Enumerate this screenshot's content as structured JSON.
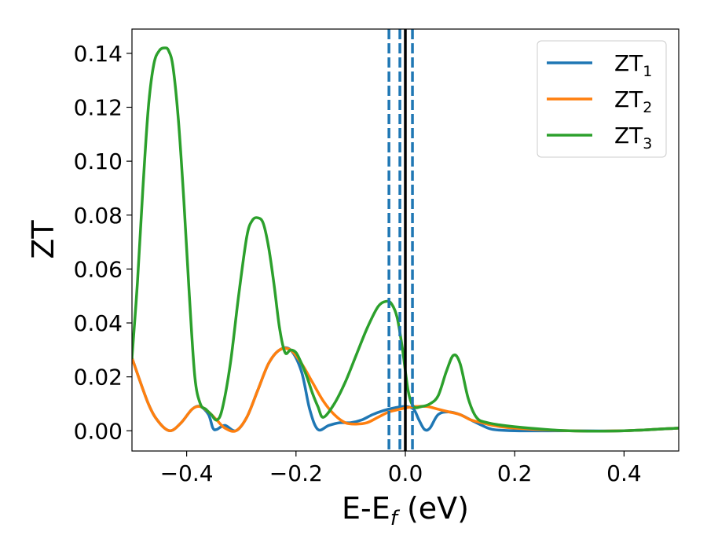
{
  "chart_data": {
    "type": "line",
    "xlabel": "E-E",
    "xlabel_sub": "f",
    "xlabel_unit": " (eV)",
    "ylabel": "ZT",
    "xlim": [
      -0.5,
      0.5
    ],
    "ylim": [
      -0.0075,
      0.149
    ],
    "xticks": [
      -0.4,
      -0.2,
      0.0,
      0.2,
      0.4
    ],
    "xtick_labels": [
      "−0.4",
      "−0.2",
      "0.0",
      "0.2",
      "0.4"
    ],
    "yticks": [
      0.0,
      0.02,
      0.04,
      0.06,
      0.08,
      0.1,
      0.12,
      0.14
    ],
    "ytick_labels": [
      "0.00",
      "0.02",
      "0.04",
      "0.06",
      "0.08",
      "0.10",
      "0.12",
      "0.14"
    ],
    "legend_position": "top-right",
    "grid": false,
    "vlines": [
      {
        "x": -0.03,
        "style": "dashed",
        "color": "#1f77b4"
      },
      {
        "x": -0.01,
        "style": "dashed",
        "color": "#1f77b4"
      },
      {
        "x": 0.0,
        "style": "solid",
        "color": "#000000"
      },
      {
        "x": 0.013,
        "style": "dashed",
        "color": "#1f77b4"
      }
    ],
    "series": [
      {
        "name": "ZT",
        "name_sub": "1",
        "color": "#1f77b4",
        "x": [
          -0.5,
          -0.47,
          -0.45,
          -0.43,
          -0.41,
          -0.39,
          -0.375,
          -0.36,
          -0.352,
          -0.345,
          -0.33,
          -0.31,
          -0.29,
          -0.27,
          -0.25,
          -0.23,
          -0.21,
          -0.19,
          -0.175,
          -0.16,
          -0.14,
          -0.12,
          -0.1,
          -0.08,
          -0.06,
          -0.04,
          -0.02,
          0.0,
          0.015,
          0.025,
          0.035,
          0.045,
          0.06,
          0.08,
          0.1,
          0.12,
          0.14,
          0.16,
          0.2,
          0.3,
          0.4,
          0.5
        ],
        "y": [
          0.027,
          0.01,
          0.003,
          0.0,
          0.003,
          0.008,
          0.009,
          0.006,
          0.001,
          0.0005,
          0.002,
          0.0,
          0.005,
          0.015,
          0.025,
          0.03,
          0.03,
          0.022,
          0.008,
          0.0005,
          0.002,
          0.003,
          0.003,
          0.004,
          0.006,
          0.0075,
          0.0085,
          0.009,
          0.008,
          0.004,
          0.0005,
          0.001,
          0.006,
          0.007,
          0.006,
          0.004,
          0.002,
          0.0005,
          0.0,
          0.0,
          0.0,
          0.001
        ]
      },
      {
        "name": "ZT",
        "name_sub": "2",
        "color": "#ff7f0e",
        "x": [
          -0.5,
          -0.47,
          -0.45,
          -0.43,
          -0.41,
          -0.39,
          -0.375,
          -0.36,
          -0.345,
          -0.33,
          -0.31,
          -0.29,
          -0.27,
          -0.25,
          -0.23,
          -0.21,
          -0.19,
          -0.17,
          -0.15,
          -0.13,
          -0.11,
          -0.09,
          -0.07,
          -0.05,
          -0.03,
          -0.01,
          0.0,
          0.02,
          0.04,
          0.06,
          0.08,
          0.1,
          0.12,
          0.14,
          0.16,
          0.2,
          0.3,
          0.4,
          0.5
        ],
        "y": [
          0.027,
          0.01,
          0.003,
          0.0,
          0.003,
          0.008,
          0.009,
          0.007,
          0.004,
          0.001,
          0.0,
          0.005,
          0.015,
          0.025,
          0.03,
          0.03,
          0.025,
          0.018,
          0.011,
          0.006,
          0.003,
          0.0025,
          0.003,
          0.005,
          0.007,
          0.008,
          0.0085,
          0.009,
          0.009,
          0.008,
          0.007,
          0.006,
          0.004,
          0.003,
          0.002,
          0.001,
          0.0,
          0.0,
          0.001
        ]
      },
      {
        "name": "ZT",
        "name_sub": "3",
        "color": "#2ca02c",
        "x": [
          -0.5,
          -0.49,
          -0.48,
          -0.47,
          -0.46,
          -0.45,
          -0.44,
          -0.433,
          -0.425,
          -0.415,
          -0.405,
          -0.395,
          -0.385,
          -0.375,
          -0.365,
          -0.355,
          -0.345,
          -0.335,
          -0.32,
          -0.305,
          -0.29,
          -0.28,
          -0.27,
          -0.26,
          -0.25,
          -0.24,
          -0.23,
          -0.22,
          -0.21,
          -0.2,
          -0.19,
          -0.18,
          -0.17,
          -0.16,
          -0.15,
          -0.13,
          -0.11,
          -0.09,
          -0.07,
          -0.05,
          -0.035,
          -0.025,
          -0.015,
          -0.005,
          0.005,
          0.015,
          0.03,
          0.045,
          0.06,
          0.075,
          0.088,
          0.1,
          0.115,
          0.13,
          0.15,
          0.2,
          0.3,
          0.4,
          0.5
        ],
        "y": [
          0.027,
          0.055,
          0.09,
          0.12,
          0.136,
          0.141,
          0.142,
          0.141,
          0.135,
          0.115,
          0.085,
          0.05,
          0.02,
          0.01,
          0.008,
          0.006,
          0.004,
          0.008,
          0.025,
          0.05,
          0.072,
          0.078,
          0.079,
          0.077,
          0.068,
          0.054,
          0.038,
          0.029,
          0.03,
          0.029,
          0.025,
          0.02,
          0.014,
          0.009,
          0.005,
          0.01,
          0.018,
          0.028,
          0.038,
          0.046,
          0.048,
          0.047,
          0.042,
          0.03,
          0.015,
          0.009,
          0.009,
          0.01,
          0.013,
          0.022,
          0.028,
          0.025,
          0.012,
          0.005,
          0.003,
          0.0015,
          0.0,
          0.0,
          0.001
        ]
      }
    ]
  }
}
